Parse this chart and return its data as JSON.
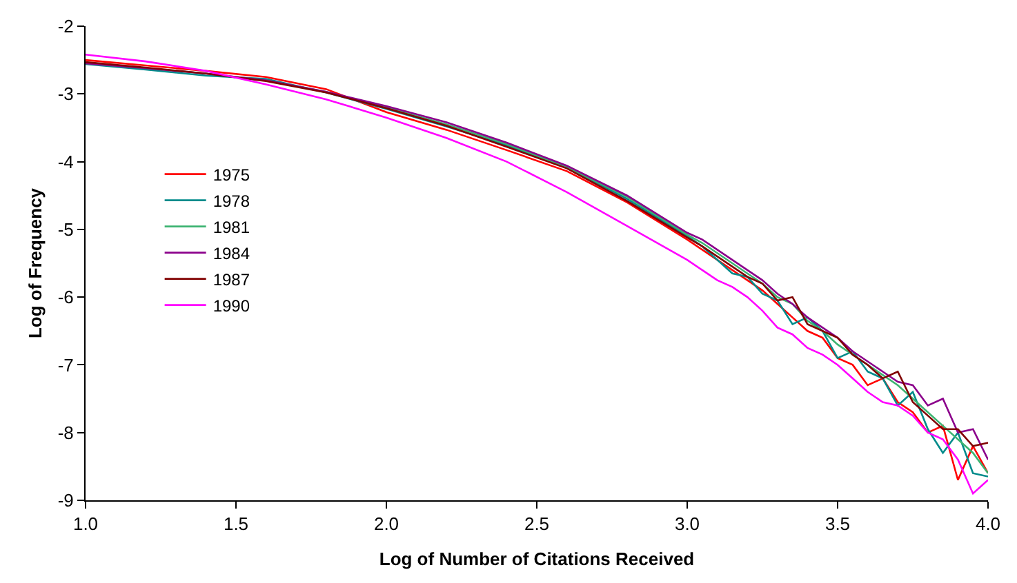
{
  "chart_data": {
    "type": "line",
    "xlabel": "Log of Number of Citations Received",
    "ylabel": "Log of Frequency",
    "x": [
      1.0,
      1.2,
      1.4,
      1.6,
      1.8,
      2.0,
      2.2,
      2.4,
      2.6,
      2.8,
      3.0,
      3.05,
      3.1,
      3.15,
      3.2,
      3.25,
      3.3,
      3.35,
      3.4,
      3.45,
      3.5,
      3.55,
      3.6,
      3.65,
      3.7,
      3.75,
      3.8,
      3.85,
      3.9,
      3.95,
      4.0
    ],
    "series": [
      {
        "name": "1975",
        "color": "#ff0000",
        "values": [
          -2.5,
          -2.58,
          -2.66,
          -2.75,
          -2.93,
          -3.27,
          -3.53,
          -3.83,
          -4.14,
          -4.6,
          -5.15,
          -5.3,
          -5.45,
          -5.6,
          -5.75,
          -5.9,
          -6.1,
          -6.3,
          -6.5,
          -6.6,
          -6.9,
          -7.0,
          -7.3,
          -7.2,
          -7.55,
          -7.7,
          -8.0,
          -7.9,
          -8.7,
          -8.2,
          -8.6
        ]
      },
      {
        "name": "1978",
        "color": "#008b8b",
        "values": [
          -2.56,
          -2.64,
          -2.73,
          -2.78,
          -2.98,
          -3.22,
          -3.48,
          -3.76,
          -4.08,
          -4.55,
          -5.1,
          -5.25,
          -5.45,
          -5.65,
          -5.7,
          -5.95,
          -6.05,
          -6.4,
          -6.3,
          -6.5,
          -6.9,
          -6.8,
          -7.1,
          -7.2,
          -7.6,
          -7.4,
          -7.95,
          -8.3,
          -8.0,
          -8.6,
          -8.65
        ]
      },
      {
        "name": "1981",
        "color": "#3cb371",
        "values": [
          -2.55,
          -2.62,
          -2.7,
          -2.8,
          -2.97,
          -3.2,
          -3.45,
          -3.74,
          -4.08,
          -4.52,
          -5.08,
          -5.2,
          -5.35,
          -5.5,
          -5.65,
          -5.8,
          -6.0,
          -6.1,
          -6.35,
          -6.5,
          -6.7,
          -6.85,
          -7.0,
          -7.15,
          -7.3,
          -7.5,
          -7.7,
          -7.9,
          -8.1,
          -8.3,
          -8.6
        ]
      },
      {
        "name": "1984",
        "color": "#8b008b",
        "values": [
          -2.55,
          -2.62,
          -2.7,
          -2.8,
          -2.97,
          -3.18,
          -3.42,
          -3.72,
          -4.06,
          -4.5,
          -5.05,
          -5.15,
          -5.3,
          -5.45,
          -5.6,
          -5.75,
          -5.95,
          -6.1,
          -6.3,
          -6.45,
          -6.6,
          -6.8,
          -6.95,
          -7.1,
          -7.25,
          -7.3,
          -7.6,
          -7.5,
          -8.0,
          -7.95,
          -8.4
        ]
      },
      {
        "name": "1987",
        "color": "#800000",
        "values": [
          -2.53,
          -2.61,
          -2.7,
          -2.81,
          -2.98,
          -3.21,
          -3.47,
          -3.78,
          -4.1,
          -4.58,
          -5.12,
          -5.25,
          -5.4,
          -5.55,
          -5.7,
          -5.8,
          -6.05,
          -6.0,
          -6.4,
          -6.5,
          -6.6,
          -6.85,
          -7.0,
          -7.2,
          -7.1,
          -7.55,
          -7.75,
          -7.95,
          -7.95,
          -8.2,
          -8.15
        ]
      },
      {
        "name": "1990",
        "color": "#ff00ff",
        "values": [
          -2.42,
          -2.52,
          -2.66,
          -2.86,
          -3.08,
          -3.35,
          -3.65,
          -4.0,
          -4.45,
          -4.95,
          -5.45,
          -5.6,
          -5.75,
          -5.85,
          -6.0,
          -6.2,
          -6.45,
          -6.55,
          -6.75,
          -6.85,
          -7.0,
          -7.2,
          -7.4,
          -7.55,
          -7.6,
          -7.75,
          -8.0,
          -8.1,
          -8.4,
          -8.9,
          -8.7
        ]
      }
    ],
    "xlim": [
      1.0,
      4.0
    ],
    "xticks": [
      {
        "value": 1.0,
        "label": "1.0"
      },
      {
        "value": 1.5,
        "label": "1.5"
      },
      {
        "value": 2.0,
        "label": "2.0"
      },
      {
        "value": 2.5,
        "label": "2.5"
      },
      {
        "value": 3.0,
        "label": "3.0"
      },
      {
        "value": 3.5,
        "label": "3.5"
      },
      {
        "value": 4.0,
        "label": "4.0"
      }
    ],
    "ylim": [
      -9,
      -2
    ],
    "yticks": [
      -9,
      -8,
      -7,
      -6,
      -5,
      -4,
      -3,
      -2
    ],
    "legend": "left",
    "marker": "none",
    "line_style": "solid"
  }
}
